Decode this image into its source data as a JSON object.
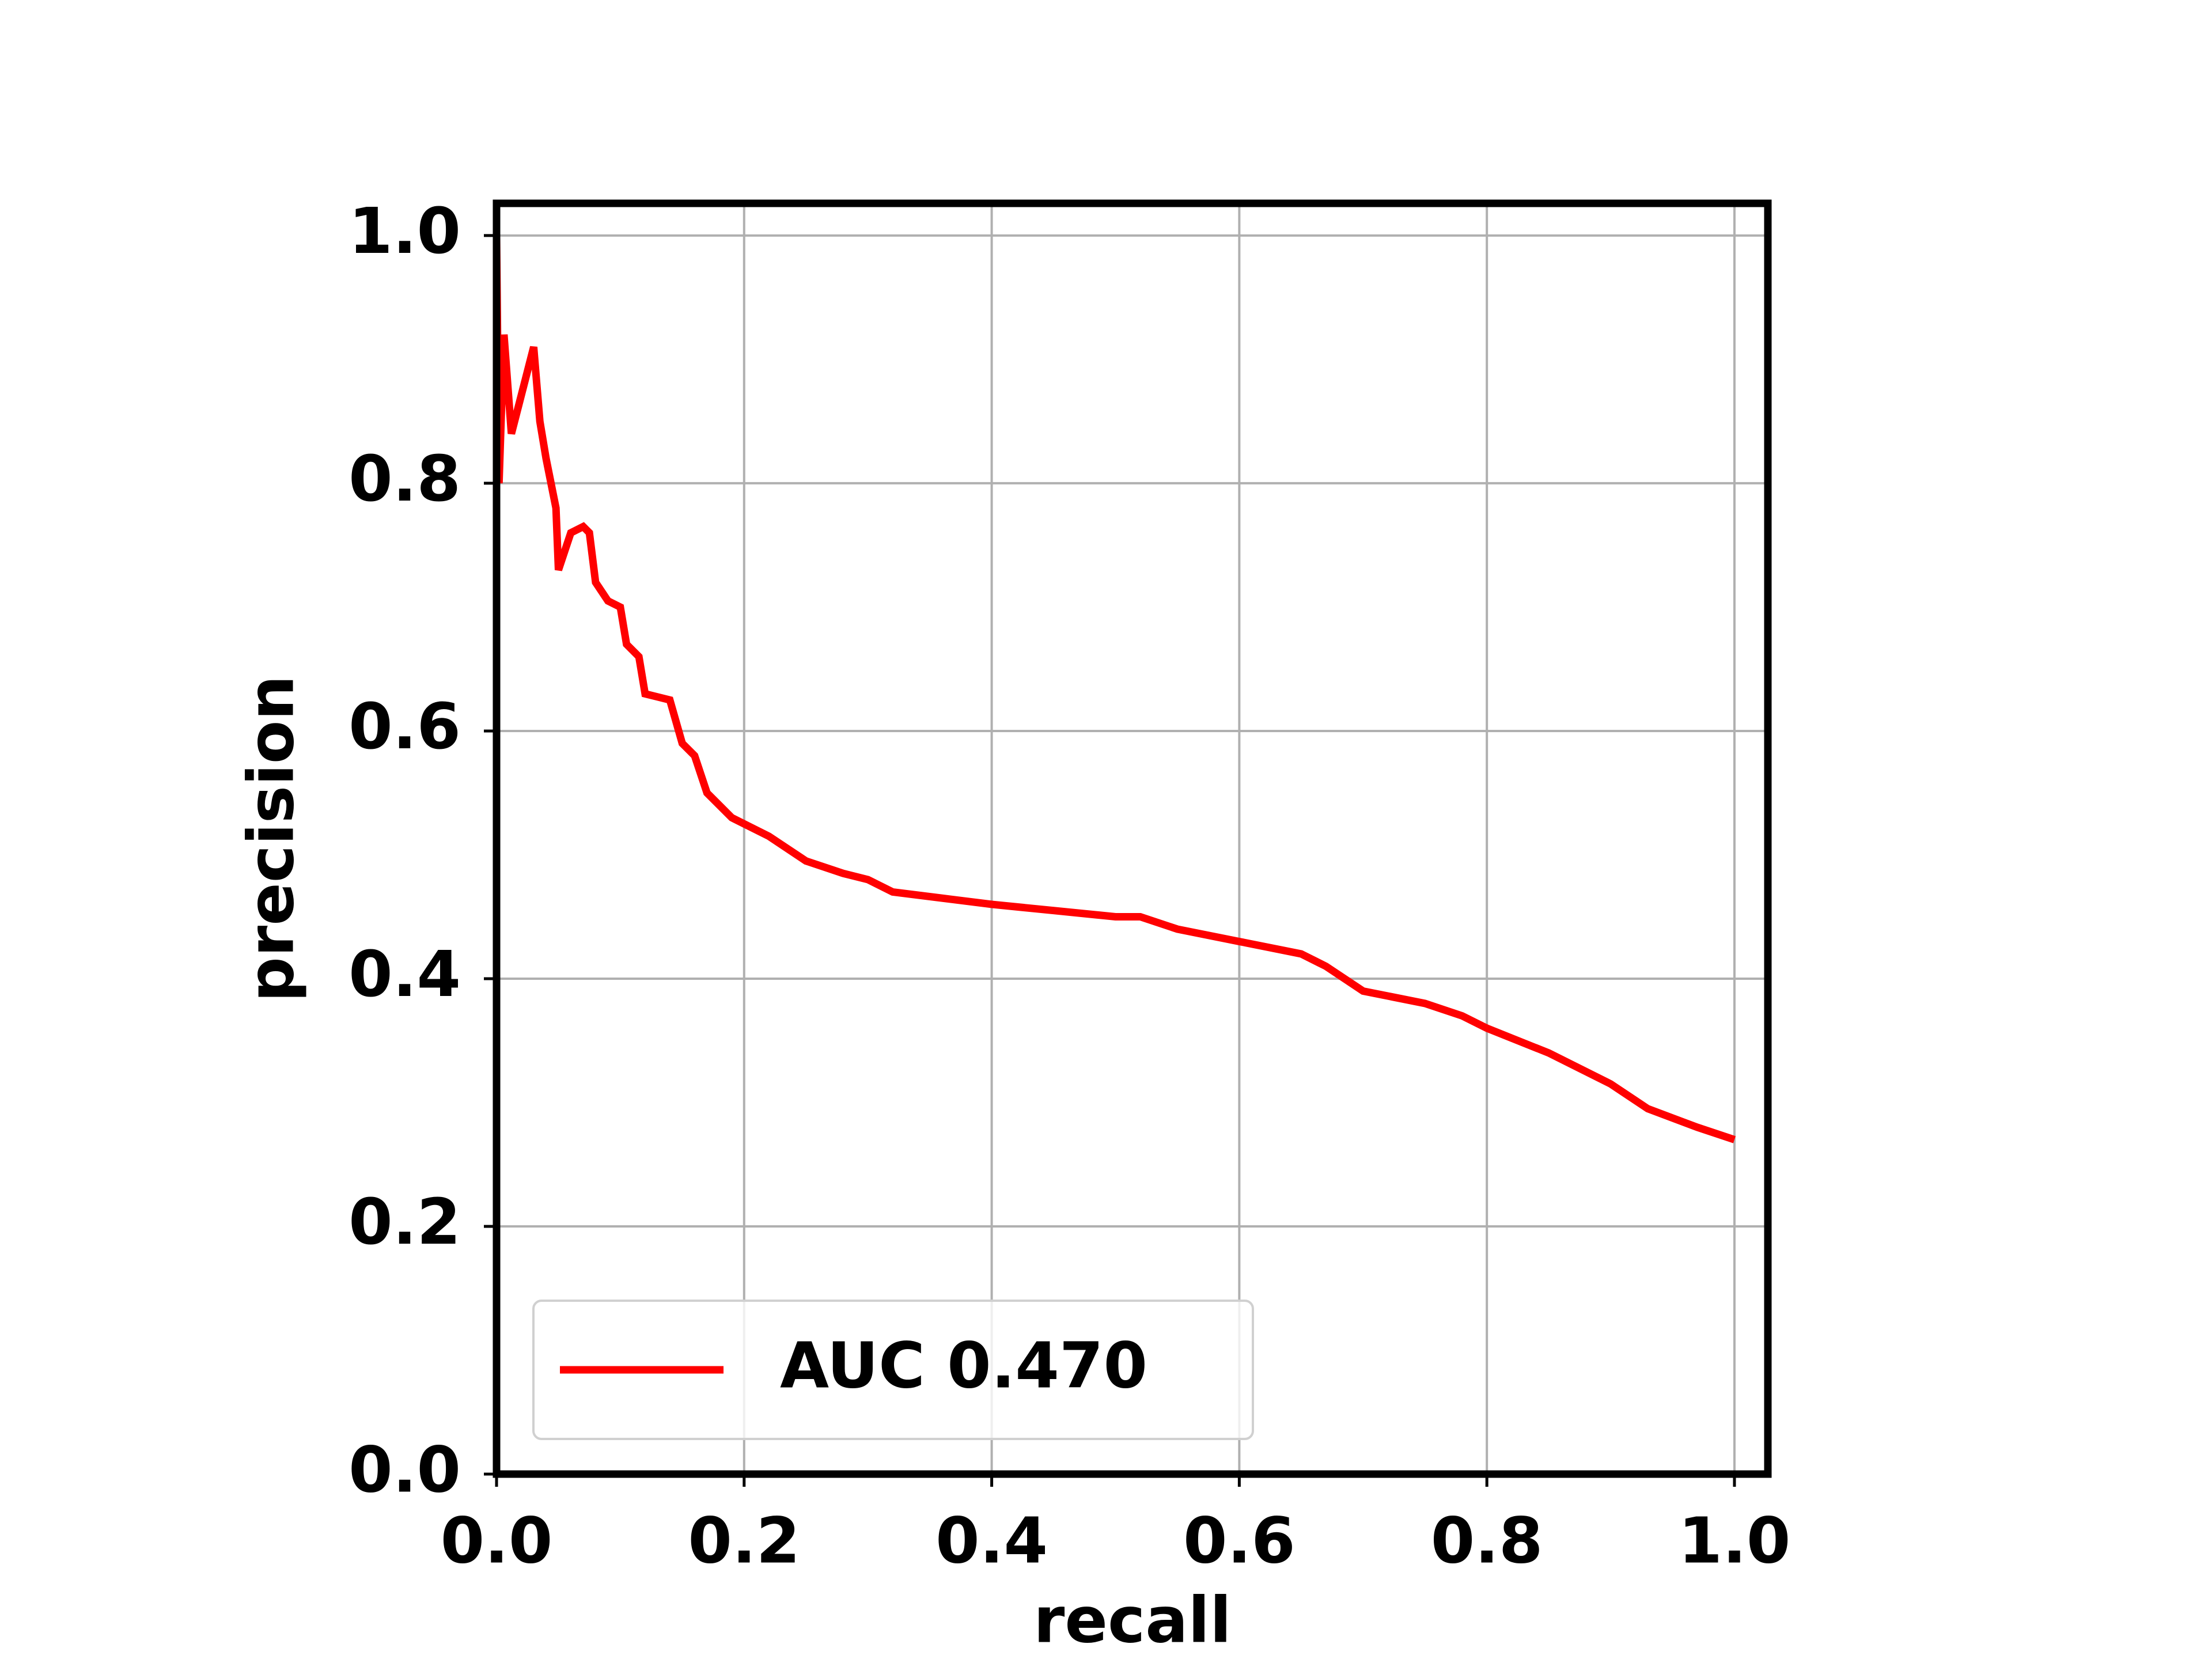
{
  "chart_data": {
    "type": "line",
    "xlabel": "recall",
    "ylabel": "precision",
    "x": [
      0,
      0.002,
      0.006,
      0.012,
      0.03,
      0.035,
      0.04,
      0.048,
      0.05,
      0.06,
      0.07,
      0.075,
      0.08,
      0.09,
      0.1,
      0.105,
      0.115,
      0.12,
      0.14,
      0.15,
      0.16,
      0.17,
      0.19,
      0.22,
      0.25,
      0.28,
      0.3,
      0.32,
      0.36,
      0.4,
      0.45,
      0.5,
      0.52,
      0.55,
      0.6,
      0.65,
      0.67,
      0.7,
      0.75,
      0.78,
      0.8,
      0.85,
      0.9,
      0.93,
      0.97,
      1.0
    ],
    "series": [
      {
        "name": "AUC 0.470",
        "color": "#ff0000",
        "values": [
          1.0,
          0.8,
          0.92,
          0.84,
          0.91,
          0.85,
          0.82,
          0.78,
          0.73,
          0.76,
          0.765,
          0.76,
          0.72,
          0.705,
          0.7,
          0.67,
          0.66,
          0.63,
          0.625,
          0.59,
          0.58,
          0.55,
          0.53,
          0.515,
          0.495,
          0.485,
          0.48,
          0.47,
          0.465,
          0.46,
          0.455,
          0.45,
          0.45,
          0.44,
          0.43,
          0.42,
          0.41,
          0.39,
          0.38,
          0.37,
          0.36,
          0.34,
          0.315,
          0.295,
          0.28,
          0.27
        ]
      }
    ],
    "xlim": [
      0,
      1.027
    ],
    "ylim": [
      0,
      1.026
    ],
    "xticks": [
      {
        "value": 0,
        "label": "0.0"
      },
      0.2,
      0.4,
      0.6,
      0.8,
      {
        "value": 1,
        "label": "1.0"
      }
    ],
    "yticks": [
      {
        "value": 0,
        "label": "0.0"
      },
      0.2,
      0.4,
      0.6,
      0.8,
      {
        "value": 1,
        "label": "1.0"
      }
    ],
    "grid": true,
    "legend": "lower left"
  }
}
